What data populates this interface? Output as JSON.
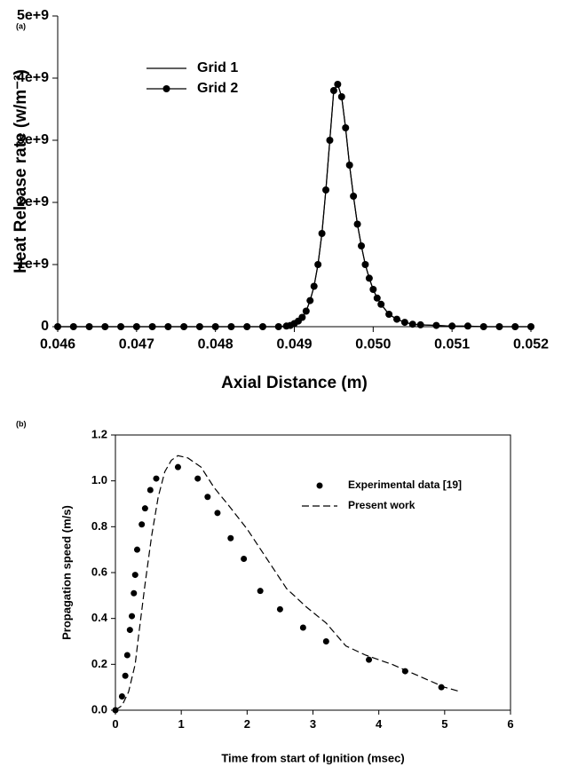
{
  "chart_data": [
    {
      "type": "line",
      "panel": "(a)",
      "xlabel": "Axial Distance (m)",
      "ylabel": "Heat Release rate (w/m⁻³)",
      "xlim": [
        0.046,
        0.052
      ],
      "xticks": [
        0.046,
        0.047,
        0.048,
        0.049,
        {
          "value": 0.05,
          "label": "0.050"
        },
        0.051,
        0.052
      ],
      "ylim": [
        0,
        5000000000.0
      ],
      "yticks": [
        0,
        {
          "value": 1000000000.0,
          "label": "1e+9"
        },
        {
          "value": 2000000000.0,
          "label": "2e+9"
        },
        {
          "value": 3000000000.0,
          "label": "3e+9"
        },
        {
          "value": 4000000000.0,
          "label": "4e+9"
        },
        {
          "value": 5000000000.0,
          "label": "5e+9"
        }
      ],
      "frame": "open",
      "legend": "upper left",
      "x": [
        0.046,
        0.0462,
        0.0464,
        0.0466,
        0.0468,
        0.047,
        0.0472,
        0.0474,
        0.0476,
        0.0478,
        0.048,
        0.0482,
        0.0484,
        0.0486,
        0.0488,
        0.0489,
        0.04895,
        0.049,
        0.04905,
        0.0491,
        0.04915,
        0.0492,
        0.04925,
        0.0493,
        0.04935,
        0.0494,
        0.04945,
        0.0495,
        0.04955,
        0.0496,
        0.04965,
        0.0497,
        0.04975,
        0.0498,
        0.04985,
        0.0499,
        0.04995,
        0.05,
        0.05005,
        0.0501,
        0.0502,
        0.0503,
        0.0504,
        0.0505,
        0.0506,
        0.0508,
        0.051,
        0.0512,
        0.0514,
        0.0516,
        0.0518,
        0.052
      ],
      "series": [
        {
          "name": "Grid 1",
          "color": "#000000",
          "mode": "line",
          "values": [
            0,
            0,
            0,
            0,
            0,
            0,
            0,
            0,
            0,
            0,
            0,
            0,
            0,
            0,
            0,
            10000000.0,
            20000000.0,
            50000000.0,
            90000000.0,
            150000000.0,
            250000000.0,
            420000000.0,
            650000000.0,
            1000000000.0,
            1500000000.0,
            2200000000.0,
            3000000000.0,
            3800000000.0,
            3900000000.0,
            3700000000.0,
            3200000000.0,
            2600000000.0,
            2100000000.0,
            1650000000.0,
            1300000000.0,
            1000000000.0,
            780000000.0,
            600000000.0,
            460000000.0,
            360000000.0,
            200000000.0,
            120000000.0,
            70000000.0,
            40000000.0,
            30000000.0,
            20000000.0,
            10000000.0,
            10000000.0,
            0,
            0,
            0,
            0
          ]
        },
        {
          "name": "Grid 2",
          "color": "#000000",
          "mode": "line-markers",
          "values": [
            0,
            0,
            0,
            0,
            0,
            0,
            0,
            0,
            0,
            0,
            0,
            0,
            0,
            0,
            0,
            10000000.0,
            20000000.0,
            50000000.0,
            90000000.0,
            150000000.0,
            250000000.0,
            420000000.0,
            650000000.0,
            1000000000.0,
            1500000000.0,
            2200000000.0,
            3000000000.0,
            3800000000.0,
            3900000000.0,
            3700000000.0,
            3200000000.0,
            2600000000.0,
            2100000000.0,
            1650000000.0,
            1300000000.0,
            1000000000.0,
            780000000.0,
            600000000.0,
            460000000.0,
            360000000.0,
            200000000.0,
            120000000.0,
            70000000.0,
            40000000.0,
            30000000.0,
            20000000.0,
            10000000.0,
            10000000.0,
            0,
            0,
            0,
            0
          ]
        }
      ]
    },
    {
      "type": "line",
      "panel": "(b)",
      "xlabel": "Time from start of Ignition (msec)",
      "ylabel": "Propagation speed (m/s)",
      "xlim": [
        0,
        6
      ],
      "xticks": [
        0,
        1,
        2,
        3,
        4,
        5,
        6
      ],
      "ylim": [
        0,
        1.2
      ],
      "yticks": [
        {
          "value": 0,
          "label": "0.0"
        },
        0.2,
        0.4,
        0.6,
        0.8,
        {
          "value": 1,
          "label": "1.0"
        },
        1.2
      ],
      "frame": "box",
      "legend": "upper right",
      "series": [
        {
          "name": "Experimental data [19]",
          "color": "#000000",
          "mode": "markers",
          "x": [
            0,
            0.1,
            0.15,
            0.18,
            0.22,
            0.25,
            0.28,
            0.3,
            0.33,
            0.4,
            0.45,
            0.53,
            0.62,
            0.95,
            1.25,
            1.4,
            1.55,
            1.75,
            1.95,
            2.2,
            2.5,
            2.85,
            3.2,
            3.85,
            4.4,
            4.95
          ],
          "values": [
            0,
            0.06,
            0.15,
            0.24,
            0.35,
            0.41,
            0.51,
            0.59,
            0.7,
            0.81,
            0.88,
            0.96,
            1.01,
            1.06,
            1.01,
            0.93,
            0.86,
            0.75,
            0.66,
            0.52,
            0.44,
            0.36,
            0.3,
            0.22,
            0.17,
            0.1
          ]
        },
        {
          "name": "Present work",
          "color": "#000000",
          "mode": "dashed",
          "x": [
            0,
            0.1,
            0.2,
            0.3,
            0.35,
            0.45,
            0.55,
            0.65,
            0.75,
            0.85,
            0.95,
            1.1,
            1.3,
            1.5,
            1.7,
            2.0,
            2.3,
            2.6,
            2.9,
            3.2,
            3.5,
            3.8,
            4.2,
            4.6,
            5.0,
            5.25
          ],
          "values": [
            0,
            0.02,
            0.08,
            0.2,
            0.32,
            0.55,
            0.76,
            0.93,
            1.04,
            1.09,
            1.11,
            1.1,
            1.06,
            0.97,
            0.9,
            0.79,
            0.66,
            0.53,
            0.45,
            0.38,
            0.28,
            0.24,
            0.2,
            0.15,
            0.1,
            0.08
          ]
        }
      ]
    }
  ]
}
